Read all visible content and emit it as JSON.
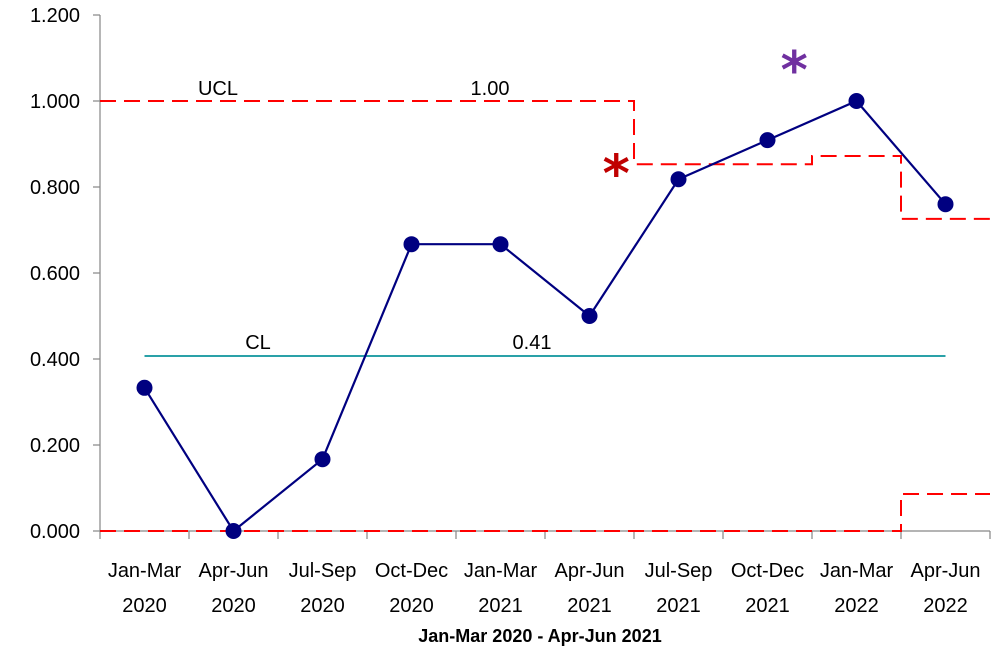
{
  "chart_data": {
    "type": "line",
    "title": "",
    "xlabel": "Jan-Mar 2020 - Apr-Jun 2021",
    "ylabel": "",
    "ylim": [
      0,
      1.2
    ],
    "yticks": [
      "0.000",
      "0.200",
      "0.400",
      "0.600",
      "0.800",
      "1.000",
      "1.200"
    ],
    "categories": [
      [
        "Jan-Mar",
        "2020"
      ],
      [
        "Apr-Jun",
        "2020"
      ],
      [
        "Jul-Sep",
        "2020"
      ],
      [
        "Oct-Dec",
        "2020"
      ],
      [
        "Jan-Mar",
        "2021"
      ],
      [
        "Apr-Jun",
        "2021"
      ],
      [
        "Jul-Sep",
        "2021"
      ],
      [
        "Oct-Dec",
        "2021"
      ],
      [
        "Jan-Mar",
        "2022"
      ],
      [
        "Apr-Jun",
        "2022"
      ]
    ],
    "series": [
      {
        "values": [
          0.333,
          0.0,
          0.167,
          0.667,
          0.667,
          0.5,
          0.818,
          0.909,
          1.0,
          0.76
        ],
        "color": "#000080",
        "marker": "circle"
      }
    ],
    "center_line": {
      "label": "CL",
      "value_label": "0.41",
      "value": 0.407,
      "color": "#2aa1a8"
    },
    "ucl": {
      "label": "UCL",
      "value_label": "1.00",
      "color": "#ff0000",
      "style": "dashed",
      "segments": [
        {
          "from": 0,
          "to": 6,
          "value": 1.0
        },
        {
          "from": 6,
          "to": 8,
          "value": 0.853
        },
        {
          "from": 8,
          "to": 9,
          "value": 0.872
        },
        {
          "from": 9,
          "to": 10,
          "value": 0.726
        }
      ]
    },
    "lcl": {
      "color": "#ff0000",
      "style": "dashed",
      "segments": [
        {
          "from": 0,
          "to": 9,
          "value": 0.0
        },
        {
          "from": 9,
          "to": 10,
          "value": 0.086
        }
      ]
    },
    "annotations": [
      {
        "symbol": "*",
        "color": "#c00000",
        "x": 5.8,
        "y": 0.79
      },
      {
        "symbol": "*",
        "color": "#7030a0",
        "x": 7.8,
        "y": 1.03
      }
    ]
  }
}
